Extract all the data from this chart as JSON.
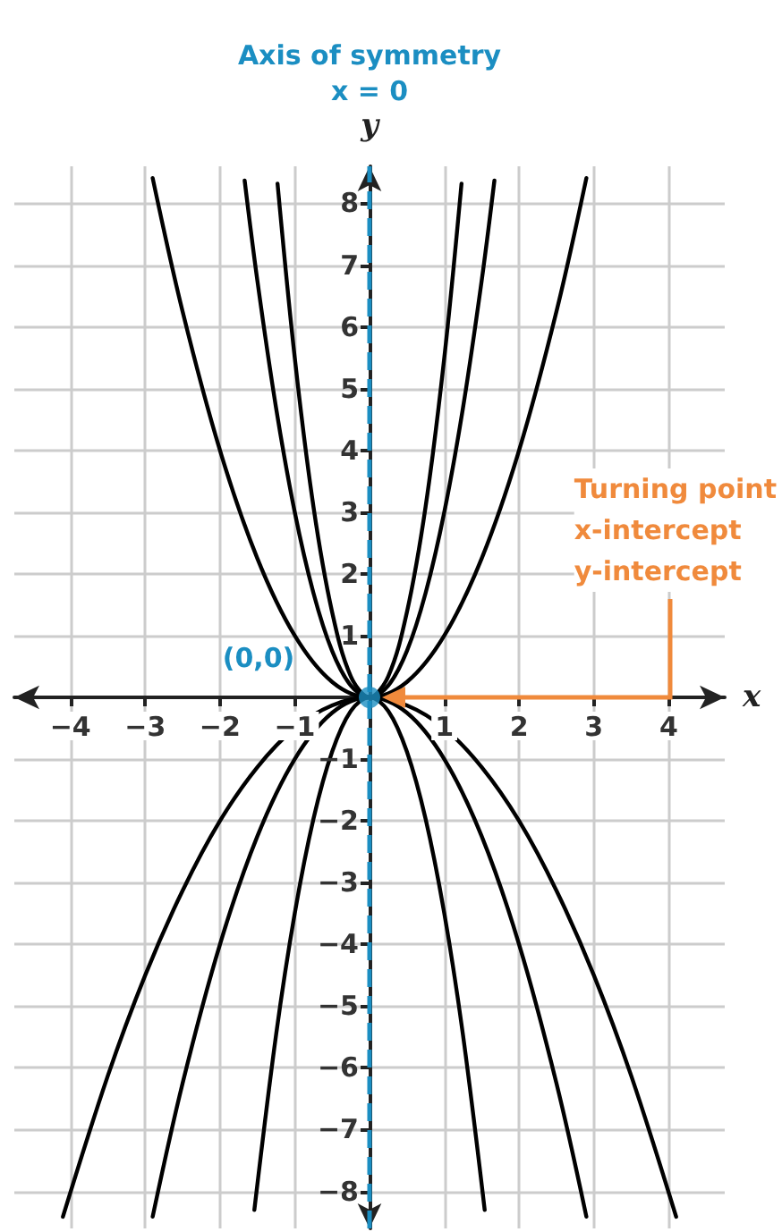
{
  "chart_data": {
    "type": "line",
    "xlabel": "x",
    "ylabel": "y",
    "xlim": [
      -4.75,
      4.75
    ],
    "ylim": [
      -8.6,
      8.6
    ],
    "xticks": [
      -4,
      -3,
      -2,
      -1,
      1,
      2,
      3,
      4
    ],
    "yticks": [
      -8,
      -7,
      -6,
      -5,
      -4,
      -3,
      -2,
      -1,
      1,
      2,
      3,
      4,
      5,
      6,
      7,
      8
    ],
    "grid": true,
    "marker": "none",
    "series": [
      {
        "color": "#000000",
        "x": [
          -2.9,
          -2.5,
          -2,
          -1.5,
          -1,
          -0.5,
          0,
          0.5,
          1,
          1.5,
          2,
          2.5,
          2.9
        ],
        "values": [
          8.41,
          6.25,
          4,
          2.25,
          1,
          0.25,
          0,
          0.25,
          1,
          2.25,
          4,
          6.25,
          8.41
        ]
      },
      {
        "color": "#000000",
        "x": [
          -1.67,
          -1.5,
          -1.25,
          -1,
          -0.75,
          -0.5,
          -0.25,
          0,
          0.25,
          0.5,
          0.75,
          1,
          1.25,
          1.5,
          1.67
        ],
        "values": [
          8.37,
          6.75,
          4.69,
          3,
          1.69,
          0.75,
          0.19,
          0,
          0.19,
          0.75,
          1.69,
          3,
          4.69,
          6.75,
          8.37
        ]
      },
      {
        "color": "#000000",
        "x": [
          -1.23,
          -1,
          -0.75,
          -0.5,
          -0.25,
          0,
          0.25,
          0.5,
          0.75,
          1,
          1.23
        ],
        "values": [
          8.32,
          5.5,
          3.09,
          1.38,
          0.34,
          0,
          0.34,
          1.38,
          3.09,
          5.5,
          8.32
        ]
      },
      {
        "color": "#000000",
        "x": [
          -4.1,
          -3.5,
          -3,
          -2.5,
          -2,
          -1.5,
          -1,
          -0.5,
          0,
          0.5,
          1,
          1.5,
          2,
          2.5,
          3,
          3.5,
          4.1
        ],
        "values": [
          -8.41,
          -6.13,
          -4.5,
          -3.13,
          -2,
          -1.13,
          -0.5,
          -0.13,
          0,
          -0.13,
          -0.5,
          -1.13,
          -2,
          -3.13,
          -4.5,
          -6.13,
          -8.41
        ]
      },
      {
        "color": "#000000",
        "x": [
          -2.9,
          -2.5,
          -2,
          -1.5,
          -1,
          -0.5,
          0,
          0.5,
          1,
          1.5,
          2,
          2.5,
          2.9
        ],
        "values": [
          -8.41,
          -6.25,
          -4,
          -2.25,
          -1,
          -0.25,
          0,
          -0.25,
          -1,
          -2.25,
          -4,
          -6.25,
          -8.41
        ]
      },
      {
        "color": "#000000",
        "x": [
          -1.54,
          -1.25,
          -1,
          -0.75,
          -0.5,
          -0.25,
          0,
          0.25,
          0.5,
          0.75,
          1,
          1.25,
          1.54
        ],
        "values": [
          -8.3,
          -5.47,
          -3.5,
          -1.97,
          -0.88,
          -0.22,
          0,
          -0.22,
          -0.88,
          -1.97,
          -3.5,
          -5.47,
          -8.3
        ]
      },
      {
        "type": "scatter",
        "marker": "circle",
        "color": "#1b8ec2",
        "x": [
          0
        ],
        "values": [
          0
        ]
      }
    ],
    "ref_lines": [
      {
        "axis": "x",
        "value": 0,
        "label": "Axis of symmetry\nx = 0",
        "color": "#1b8ec2",
        "line_style": "dashed"
      }
    ],
    "annotations": [
      {
        "text": "(0,0)",
        "x": 0,
        "y": 0
      },
      "Turning point\nx-intercept\ny-intercept"
    ]
  }
}
